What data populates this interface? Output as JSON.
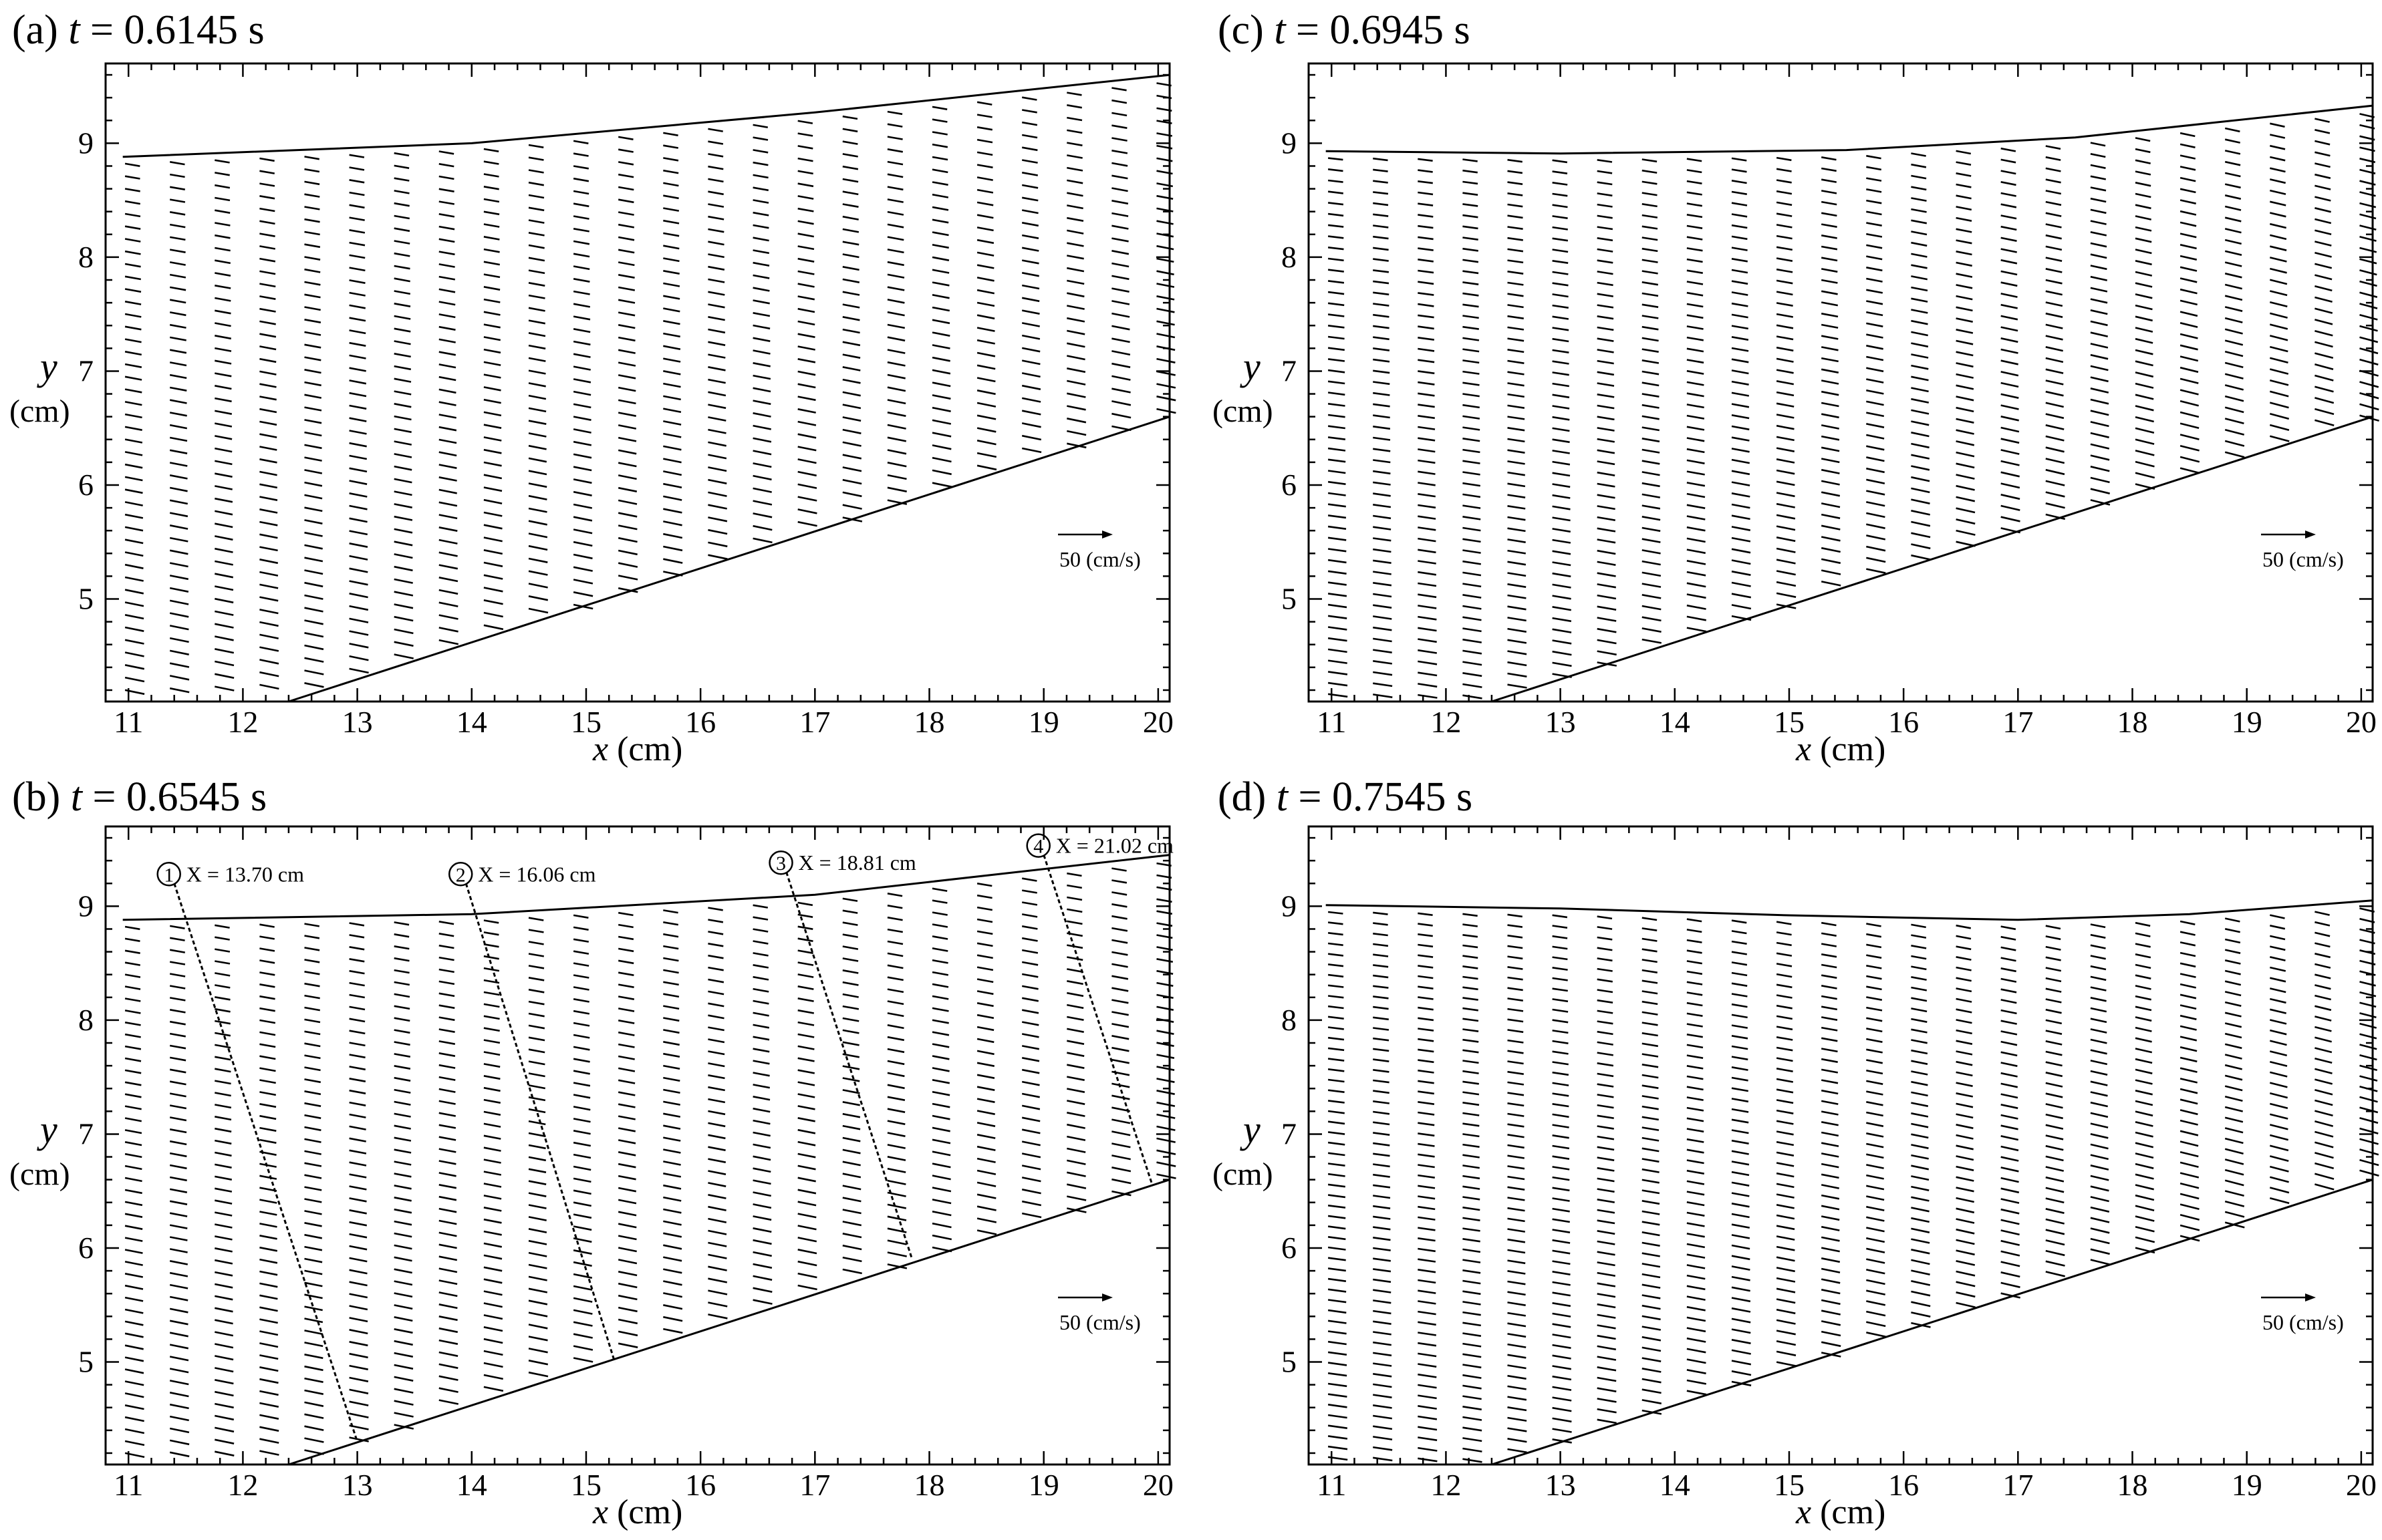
{
  "chart_data": [
    {
      "type": "vector-field",
      "panel_label": "(a)",
      "time_label": "t = 0.6145 s",
      "t_var": "t",
      "t_rest": " = 0.6145 s",
      "xlabel_var": "x",
      "xlabel_unit": " (cm)",
      "ylabel_var": "y",
      "ylabel_unit": "(cm)",
      "xlim": [
        10.8,
        20.1
      ],
      "ylim": [
        4.1,
        9.7
      ],
      "xticks": [
        "11",
        "12",
        "13",
        "14",
        "15",
        "16",
        "17",
        "18",
        "19",
        "20"
      ],
      "yticks": [
        "5",
        "6",
        "7",
        "8",
        "9"
      ],
      "top_boundary": [
        [
          10.95,
          8.88
        ],
        [
          14.0,
          9.0
        ],
        [
          17.0,
          9.27
        ],
        [
          20.1,
          9.6
        ]
      ],
      "bottom_boundary": [
        [
          12.4,
          4.1
        ],
        [
          20.1,
          6.6
        ]
      ],
      "reference_vector": {
        "label": "50 (cm/s)",
        "magnitude": 50
      },
      "sections": []
    },
    {
      "type": "vector-field",
      "panel_label": "(b)",
      "time_label": "t = 0.6545 s",
      "t_var": "t",
      "t_rest": " = 0.6545 s",
      "xlabel_var": "x",
      "xlabel_unit": " (cm)",
      "ylabel_var": "y",
      "ylabel_unit": "(cm)",
      "xlim": [
        10.8,
        20.1
      ],
      "ylim": [
        4.1,
        9.7
      ],
      "xticks": [
        "11",
        "12",
        "13",
        "14",
        "15",
        "16",
        "17",
        "18",
        "19",
        "20"
      ],
      "yticks": [
        "5",
        "6",
        "7",
        "8",
        "9"
      ],
      "top_boundary": [
        [
          10.95,
          8.88
        ],
        [
          14.0,
          8.93
        ],
        [
          17.0,
          9.1
        ],
        [
          20.1,
          9.45
        ]
      ],
      "bottom_boundary": [
        [
          12.4,
          4.1
        ],
        [
          20.1,
          6.6
        ]
      ],
      "reference_vector": {
        "label": "50 (cm/s)",
        "magnitude": 50
      },
      "sections": [
        {
          "id": "1",
          "label": "X = 13.70 cm",
          "from": [
            11.4,
            9.2
          ],
          "to": [
            13.0,
            4.3
          ]
        },
        {
          "id": "2",
          "label": "X = 16.06 cm",
          "from": [
            13.95,
            9.2
          ],
          "to": [
            15.25,
            5.0
          ]
        },
        {
          "id": "3",
          "label": "X = 18.81 cm",
          "from": [
            16.75,
            9.3
          ],
          "to": [
            17.85,
            5.9
          ]
        },
        {
          "id": "4",
          "label": "X = 21.02 cm",
          "from": [
            19.0,
            9.45
          ],
          "to": [
            19.95,
            6.55
          ]
        }
      ]
    },
    {
      "type": "vector-field",
      "panel_label": "(c)",
      "time_label": "t = 0.6945 s",
      "t_var": "t",
      "t_rest": " = 0.6945 s",
      "xlabel_var": "x",
      "xlabel_unit": " (cm)",
      "ylabel_var": "y",
      "ylabel_unit": "(cm)",
      "xlim": [
        10.8,
        20.1
      ],
      "ylim": [
        4.1,
        9.7
      ],
      "xticks": [
        "11",
        "12",
        "13",
        "14",
        "15",
        "16",
        "17",
        "18",
        "19",
        "20"
      ],
      "yticks": [
        "5",
        "6",
        "7",
        "8",
        "9"
      ],
      "top_boundary": [
        [
          10.95,
          8.93
        ],
        [
          13.0,
          8.91
        ],
        [
          15.5,
          8.94
        ],
        [
          17.5,
          9.05
        ],
        [
          20.1,
          9.33
        ]
      ],
      "bottom_boundary": [
        [
          12.4,
          4.1
        ],
        [
          20.1,
          6.6
        ]
      ],
      "reference_vector": {
        "label": "50 (cm/s)",
        "magnitude": 50
      },
      "sections": []
    },
    {
      "type": "vector-field",
      "panel_label": "(d)",
      "time_label": "t = 0.7545  s",
      "t_var": "t",
      "t_rest": " = 0.7545  s",
      "xlabel_var": "x",
      "xlabel_unit": " (cm)",
      "ylabel_var": "y",
      "ylabel_unit": "(cm)",
      "xlim": [
        10.8,
        20.1
      ],
      "ylim": [
        4.1,
        9.7
      ],
      "xticks": [
        "11",
        "12",
        "13",
        "14",
        "15",
        "16",
        "17",
        "18",
        "19",
        "20"
      ],
      "yticks": [
        "5",
        "6",
        "7",
        "8",
        "9"
      ],
      "top_boundary": [
        [
          10.95,
          9.01
        ],
        [
          13.0,
          8.98
        ],
        [
          15.0,
          8.92
        ],
        [
          17.0,
          8.88
        ],
        [
          18.5,
          8.93
        ],
        [
          20.1,
          9.05
        ]
      ],
      "bottom_boundary": [
        [
          12.4,
          4.1
        ],
        [
          20.1,
          6.6
        ]
      ],
      "reference_vector": {
        "label": "50 (cm/s)",
        "magnitude": 50
      },
      "sections": []
    }
  ]
}
